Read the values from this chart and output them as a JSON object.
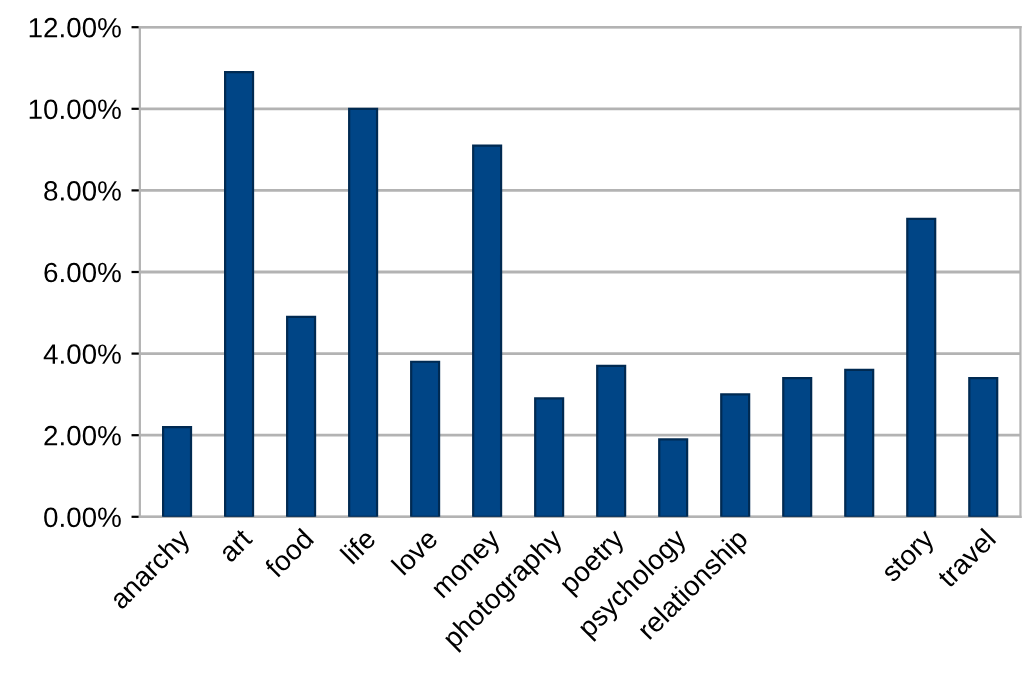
{
  "chart_data": {
    "type": "bar",
    "categories": [
      "anarchy",
      "art",
      "food",
      "life",
      "love",
      "money",
      "photography",
      "poetry",
      "psychology",
      "relationship",
      null,
      null,
      "story",
      "travel"
    ],
    "values": [
      2.2,
      10.9,
      4.9,
      10.0,
      3.8,
      9.1,
      2.9,
      3.7,
      1.9,
      3.0,
      3.4,
      3.6,
      7.3,
      3.4
    ],
    "color": "#004586",
    "ylim": [
      0,
      12
    ],
    "yticks": [
      {
        "value": 0,
        "label": "0.00%"
      },
      {
        "value": 2,
        "label": "2.00%"
      },
      {
        "value": 4,
        "label": "4.00%"
      },
      {
        "value": 6,
        "label": "6.00%"
      },
      {
        "value": 8,
        "label": "8.00%"
      },
      {
        "value": 10,
        "label": "10.00%"
      },
      {
        "value": 12,
        "label": "12.00%"
      }
    ],
    "grid": "y"
  }
}
